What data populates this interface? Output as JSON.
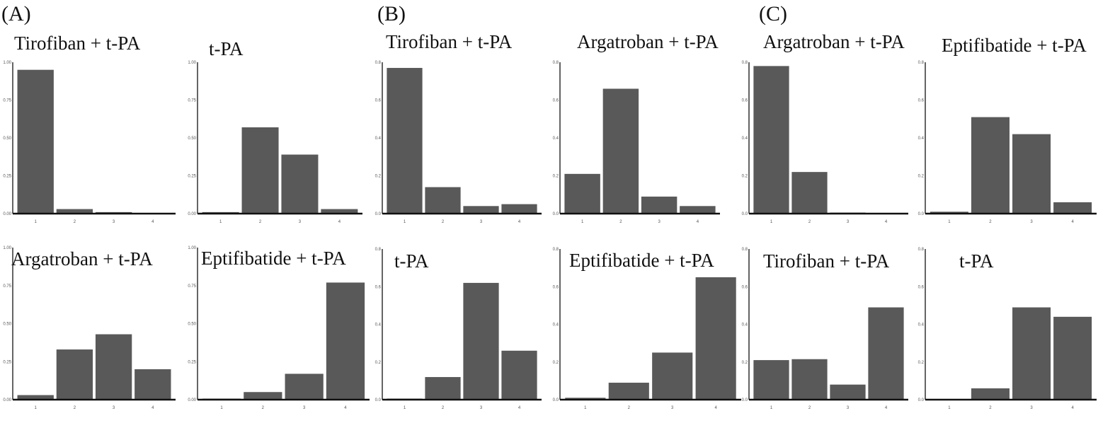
{
  "figure": {
    "panel_labels": [
      "(A)",
      "(B)",
      "(C)"
    ],
    "bar_color": "#595959"
  },
  "chart_data": [
    {
      "type": "bar",
      "title": "Tirofiban + t-PA",
      "categories": [
        "1",
        "2",
        "3",
        "4"
      ],
      "values": [
        0.95,
        0.03,
        0.01,
        0.0
      ],
      "ylim": [
        0,
        1.0
      ],
      "yticks": [
        "0.00",
        "0.25",
        "0.50",
        "0.75",
        "1.00"
      ],
      "xlabel": "",
      "ylabel": ""
    },
    {
      "type": "bar",
      "title": "t-PA",
      "categories": [
        "1",
        "2",
        "3",
        "4"
      ],
      "values": [
        0.01,
        0.57,
        0.39,
        0.03
      ],
      "ylim": [
        0,
        1.0
      ],
      "yticks": [
        "0.00",
        "0.25",
        "0.50",
        "0.75",
        "1.00"
      ],
      "xlabel": "",
      "ylabel": ""
    },
    {
      "type": "bar",
      "title": "Tirofiban + t-PA",
      "categories": [
        "1",
        "2",
        "3",
        "4"
      ],
      "values": [
        0.77,
        0.14,
        0.04,
        0.05
      ],
      "ylim": [
        0,
        0.8
      ],
      "yticks": [
        "0.0",
        "0.2",
        "0.4",
        "0.6",
        "0.8"
      ],
      "xlabel": "",
      "ylabel": ""
    },
    {
      "type": "bar",
      "title": "Argatroban + t-PA",
      "categories": [
        "1",
        "2",
        "3",
        "4"
      ],
      "values": [
        0.21,
        0.66,
        0.09,
        0.04
      ],
      "ylim": [
        0,
        0.8
      ],
      "yticks": [
        "0.0",
        "0.2",
        "0.4",
        "0.6",
        "0.8"
      ],
      "xlabel": "",
      "ylabel": ""
    },
    {
      "type": "bar",
      "title": "Argatroban + t-PA",
      "categories": [
        "1",
        "2",
        "3",
        "4"
      ],
      "values": [
        0.78,
        0.22,
        0.005,
        0.0
      ],
      "ylim": [
        0,
        0.8
      ],
      "yticks": [
        "0.0",
        "0.2",
        "0.4",
        "0.6",
        "0.8"
      ],
      "xlabel": "",
      "ylabel": ""
    },
    {
      "type": "bar",
      "title": "Eptifibatide + t-PA",
      "categories": [
        "1",
        "2",
        "3",
        "4"
      ],
      "values": [
        0.01,
        0.51,
        0.42,
        0.06
      ],
      "ylim": [
        0,
        0.8
      ],
      "yticks": [
        "0.0",
        "0.2",
        "0.4",
        "0.6",
        "0.8"
      ],
      "xlabel": "",
      "ylabel": ""
    },
    {
      "type": "bar",
      "title": "Argatroban + t-PA",
      "categories": [
        "1",
        "2",
        "3",
        "4"
      ],
      "values": [
        0.03,
        0.33,
        0.43,
        0.2
      ],
      "ylim": [
        0,
        1.0
      ],
      "yticks": [
        "0.00",
        "0.25",
        "0.50",
        "0.75",
        "1.00"
      ],
      "xlabel": "",
      "ylabel": ""
    },
    {
      "type": "bar",
      "title": "Eptifibatide + t-PA",
      "categories": [
        "1",
        "2",
        "3",
        "4"
      ],
      "values": [
        0.003,
        0.05,
        0.17,
        0.77
      ],
      "ylim": [
        0,
        1.0
      ],
      "yticks": [
        "0.00",
        "0.25",
        "0.50",
        "0.75",
        "1.00"
      ],
      "xlabel": "",
      "ylabel": ""
    },
    {
      "type": "bar",
      "title": "t-PA",
      "categories": [
        "1",
        "2",
        "3",
        "4"
      ],
      "values": [
        0.005,
        0.12,
        0.62,
        0.26
      ],
      "ylim": [
        0,
        0.8
      ],
      "yticks": [
        "0.0",
        "0.2",
        "0.4",
        "0.6",
        "0.8"
      ],
      "xlabel": "",
      "ylabel": ""
    },
    {
      "type": "bar",
      "title": "Eptifibatide + t-PA",
      "categories": [
        "1",
        "2",
        "3",
        "4"
      ],
      "values": [
        0.01,
        0.09,
        0.25,
        0.65
      ],
      "ylim": [
        0,
        0.8
      ],
      "yticks": [
        "0.0",
        "0.2",
        "0.4",
        "0.6",
        "0.8"
      ],
      "xlabel": "",
      "ylabel": ""
    },
    {
      "type": "bar",
      "title": "Tirofiban + t-PA",
      "categories": [
        "1",
        "2",
        "3",
        "4"
      ],
      "values": [
        0.21,
        0.215,
        0.08,
        0.49
      ],
      "ylim": [
        0,
        0.8
      ],
      "yticks": [
        "0.0",
        "0.2",
        "0.4",
        "0.6",
        "0.8"
      ],
      "xlabel": "",
      "ylabel": ""
    },
    {
      "type": "bar",
      "title": "t-PA",
      "categories": [
        "1",
        "2",
        "3",
        "4"
      ],
      "values": [
        0.0,
        0.06,
        0.49,
        0.44
      ],
      "ylim": [
        0,
        0.8
      ],
      "yticks": [
        "0.0",
        "0.2",
        "0.4",
        "0.6",
        "0.8"
      ],
      "xlabel": "",
      "ylabel": ""
    }
  ]
}
